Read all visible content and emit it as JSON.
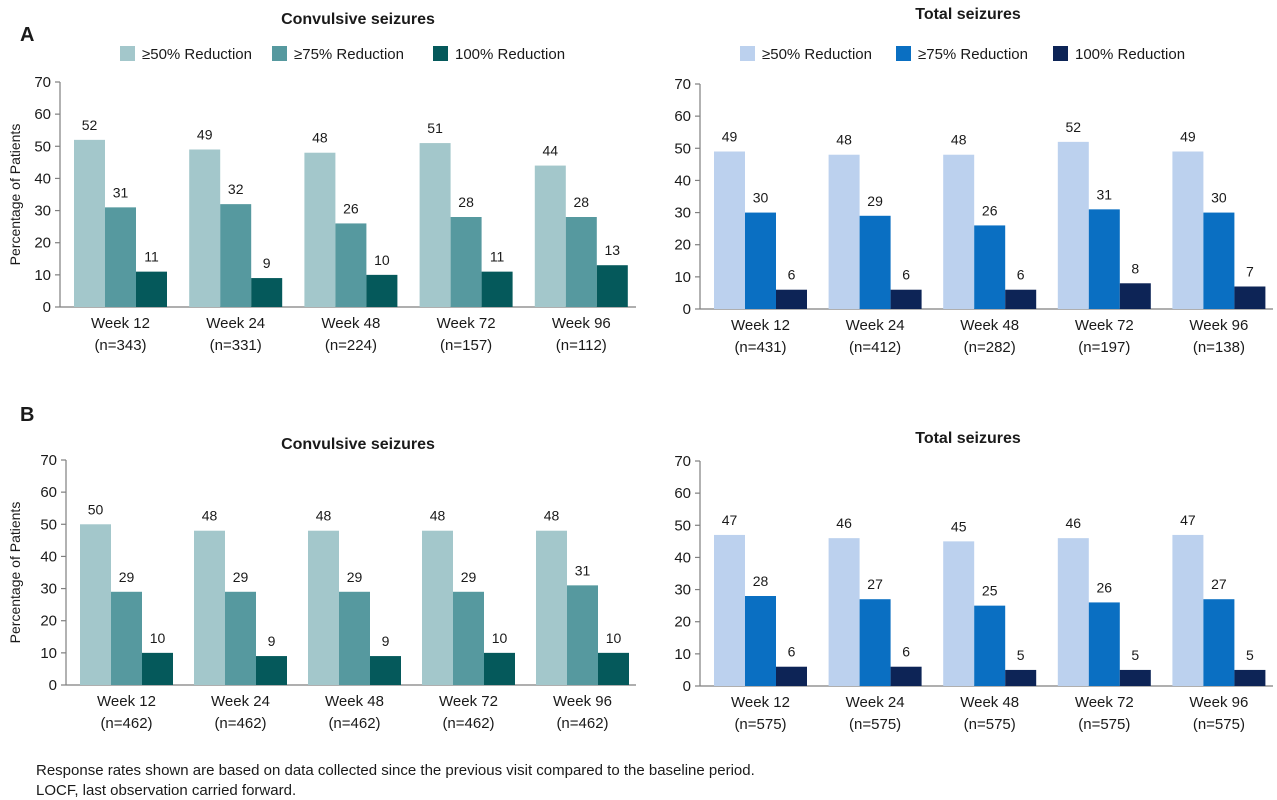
{
  "panels": [
    {
      "letter": "A"
    },
    {
      "letter": "B"
    }
  ],
  "footnotes": [
    "Response rates shown are based on data collected since the previous visit compared to the baseline period.",
    "LOCF, last observation carried forward."
  ],
  "chart_data": [
    {
      "type": "bar",
      "panel": "A",
      "title": "Convulsive seizures",
      "ylabel": "Percentage of Patients",
      "xlabel": "",
      "ylim": [
        0,
        70
      ],
      "yticks": [
        0,
        10,
        20,
        30,
        40,
        50,
        60,
        70
      ],
      "legend_position": "top",
      "grid": false,
      "categories": [
        "Week 12",
        "Week 24",
        "Week 48",
        "Week 72",
        "Week 96"
      ],
      "category_n": [
        "(n=343)",
        "(n=331)",
        "(n=224)",
        "(n=157)",
        "(n=112)"
      ],
      "series": [
        {
          "name": "≥50% Reduction",
          "color": "#a3c7cb",
          "values": [
            52,
            49,
            48,
            51,
            44
          ]
        },
        {
          "name": "≥75% Reduction",
          "color": "#56999f",
          "values": [
            31,
            32,
            26,
            28,
            28
          ]
        },
        {
          "name": "100% Reduction",
          "color": "#05595b",
          "values": [
            11,
            9,
            10,
            11,
            13
          ]
        }
      ]
    },
    {
      "type": "bar",
      "panel": "A",
      "title": "Total seizures",
      "ylabel": "",
      "xlabel": "",
      "ylim": [
        0,
        70
      ],
      "yticks": [
        0,
        10,
        20,
        30,
        40,
        50,
        60,
        70
      ],
      "legend_position": "top",
      "grid": false,
      "categories": [
        "Week 12",
        "Week 24",
        "Week 48",
        "Week 72",
        "Week 96"
      ],
      "category_n": [
        "(n=431)",
        "(n=412)",
        "(n=282)",
        "(n=197)",
        "(n=138)"
      ],
      "series": [
        {
          "name": "≥50% Reduction",
          "color": "#bcd1ee",
          "values": [
            49,
            48,
            48,
            52,
            49
          ]
        },
        {
          "name": "≥75% Reduction",
          "color": "#0a6fc2",
          "values": [
            30,
            29,
            26,
            31,
            30
          ]
        },
        {
          "name": "100% Reduction",
          "color": "#0d2456",
          "values": [
            6,
            6,
            6,
            8,
            7
          ]
        }
      ]
    },
    {
      "type": "bar",
      "panel": "B",
      "title": "Convulsive seizures",
      "ylabel": "Percentage of Patients",
      "xlabel": "",
      "ylim": [
        0,
        70
      ],
      "yticks": [
        0,
        10,
        20,
        30,
        40,
        50,
        60,
        70
      ],
      "grid": false,
      "categories": [
        "Week 12",
        "Week 24",
        "Week 48",
        "Week 72",
        "Week 96"
      ],
      "category_n": [
        "(n=462)",
        "(n=462)",
        "(n=462)",
        "(n=462)",
        "(n=462)"
      ],
      "series": [
        {
          "color": "#a3c7cb",
          "values": [
            50,
            48,
            48,
            48,
            48
          ]
        },
        {
          "color": "#56999f",
          "values": [
            29,
            29,
            29,
            29,
            31
          ]
        },
        {
          "color": "#05595b",
          "values": [
            10,
            9,
            9,
            10,
            10
          ]
        }
      ]
    },
    {
      "type": "bar",
      "panel": "B",
      "title": "Total seizures",
      "ylabel": "",
      "xlabel": "",
      "ylim": [
        0,
        70
      ],
      "yticks": [
        0,
        10,
        20,
        30,
        40,
        50,
        60,
        70
      ],
      "grid": false,
      "categories": [
        "Week 12",
        "Week 24",
        "Week 48",
        "Week 72",
        "Week 96"
      ],
      "category_n": [
        "(n=575)",
        "(n=575)",
        "(n=575)",
        "(n=575)",
        "(n=575)"
      ],
      "series": [
        {
          "color": "#bcd1ee",
          "values": [
            47,
            46,
            45,
            46,
            47
          ]
        },
        {
          "color": "#0a6fc2",
          "values": [
            28,
            27,
            25,
            26,
            27
          ]
        },
        {
          "color": "#0d2456",
          "values": [
            6,
            6,
            5,
            5,
            5
          ]
        }
      ]
    }
  ]
}
